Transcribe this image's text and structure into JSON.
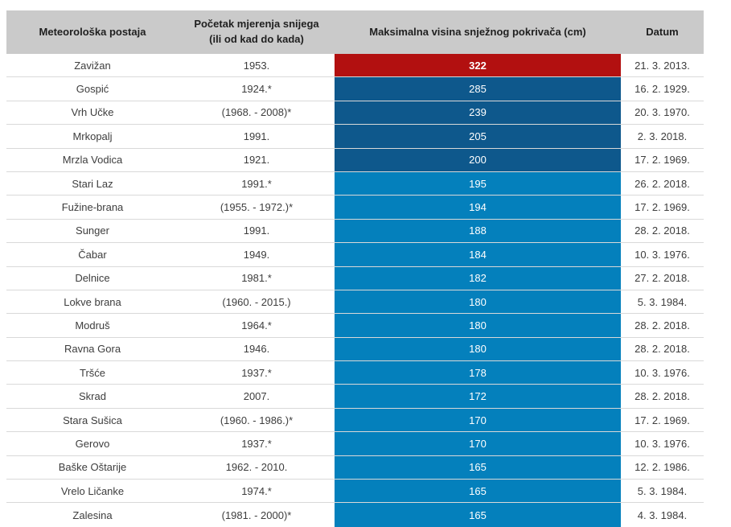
{
  "colors": {
    "header_bg": "#cacaca",
    "red": "#b21010",
    "dark_blue": "#0e588c",
    "light_blue": "#0480bc",
    "row_separator": "#d9d9d9",
    "header_text": "#1f1f1f",
    "cell_text": "#3d3d3d",
    "bar_text": "#ffffff"
  },
  "table": {
    "header": {
      "station": "Meteorološka postaja",
      "period_line1": "Početak mjerenja snijega",
      "period_line2": "(ili od kad do kada)",
      "value": "Maksimalna visina snježnog pokrivača (cm)",
      "date": "Datum"
    },
    "rows": [
      {
        "station": "Zavižan",
        "period": "1953.",
        "value": "322",
        "date": "21. 3. 2013.",
        "color": "red",
        "bold": true
      },
      {
        "station": "Gospić",
        "period": "1924.*",
        "value": "285",
        "date": "16. 2. 1929.",
        "color": "dark_blue",
        "bold": false
      },
      {
        "station": "Vrh Učke",
        "period": "(1968. - 2008)*",
        "value": "239",
        "date": "20. 3. 1970.",
        "color": "dark_blue",
        "bold": false
      },
      {
        "station": "Mrkopalj",
        "period": "1991.",
        "value": "205",
        "date": "2. 3. 2018.",
        "color": "dark_blue",
        "bold": false
      },
      {
        "station": "Mrzla Vodica",
        "period": "1921.",
        "value": "200",
        "date": "17. 2. 1969.",
        "color": "dark_blue",
        "bold": false
      },
      {
        "station": "Stari Laz",
        "period": "1991.*",
        "value": "195",
        "date": "26. 2. 2018.",
        "color": "light_blue",
        "bold": false
      },
      {
        "station": "Fužine-brana",
        "period": "(1955. - 1972.)*",
        "value": "194",
        "date": "17. 2. 1969.",
        "color": "light_blue",
        "bold": false
      },
      {
        "station": "Sunger",
        "period": "1991.",
        "value": "188",
        "date": "28. 2. 2018.",
        "color": "light_blue",
        "bold": false
      },
      {
        "station": "Čabar",
        "period": "1949.",
        "value": "184",
        "date": "10. 3. 1976.",
        "color": "light_blue",
        "bold": false
      },
      {
        "station": "Delnice",
        "period": "1981.*",
        "value": "182",
        "date": "27. 2. 2018.",
        "color": "light_blue",
        "bold": false
      },
      {
        "station": "Lokve brana",
        "period": "(1960. - 2015.)",
        "value": "180",
        "date": "5. 3. 1984.",
        "color": "light_blue",
        "bold": false
      },
      {
        "station": "Modruš",
        "period": "1964.*",
        "value": "180",
        "date": "28. 2. 2018.",
        "color": "light_blue",
        "bold": false
      },
      {
        "station": "Ravna Gora",
        "period": "1946.",
        "value": "180",
        "date": "28. 2. 2018.",
        "color": "light_blue",
        "bold": false
      },
      {
        "station": "Tršće",
        "period": "1937.*",
        "value": "178",
        "date": "10. 3. 1976.",
        "color": "light_blue",
        "bold": false
      },
      {
        "station": "Skrad",
        "period": "2007.",
        "value": "172",
        "date": "28. 2. 2018.",
        "color": "light_blue",
        "bold": false
      },
      {
        "station": "Stara Sušica",
        "period": "(1960. - 1986.)*",
        "value": "170",
        "date": "17. 2. 1969.",
        "color": "light_blue",
        "bold": false
      },
      {
        "station": "Gerovo",
        "period": "1937.*",
        "value": "170",
        "date": "10. 3. 1976.",
        "color": "light_blue",
        "bold": false
      },
      {
        "station": "Baške Oštarije",
        "period": "1962. - 2010.",
        "value": "165",
        "date": "12. 2. 1986.",
        "color": "light_blue",
        "bold": false
      },
      {
        "station": "Vrelo Ličanke",
        "period": "1974.*",
        "value": "165",
        "date": "5. 3. 1984.",
        "color": "light_blue",
        "bold": false
      },
      {
        "station": "Zalesina",
        "period": "(1981. - 2000)*",
        "value": "165",
        "date": "4. 3. 1984.",
        "color": "light_blue",
        "bold": false
      }
    ]
  },
  "chart_data": {
    "type": "table",
    "columns": [
      "Meteorološka postaja",
      "Početak mjerenja snijega (ili od kad do kada)",
      "Maksimalna visina snježnog pokrivača (cm)",
      "Datum"
    ],
    "rows": [
      [
        "Zavižan",
        "1953.",
        322,
        "21. 3. 2013."
      ],
      [
        "Gospić",
        "1924.*",
        285,
        "16. 2. 1929."
      ],
      [
        "Vrh Učke",
        "(1968. - 2008)*",
        239,
        "20. 3. 1970."
      ],
      [
        "Mrkopalj",
        "1991.",
        205,
        "2. 3. 2018."
      ],
      [
        "Mrzla Vodica",
        "1921.",
        200,
        "17. 2. 1969."
      ],
      [
        "Stari Laz",
        "1991.*",
        195,
        "26. 2. 2018."
      ],
      [
        "Fužine-brana",
        "(1955. - 1972.)*",
        194,
        "17. 2. 1969."
      ],
      [
        "Sunger",
        "1991.",
        188,
        "28. 2. 2018."
      ],
      [
        "Čabar",
        "1949.",
        184,
        "10. 3. 1976."
      ],
      [
        "Delnice",
        "1981.*",
        182,
        "27. 2. 2018."
      ],
      [
        "Lokve brana",
        "(1960. - 2015.)",
        180,
        "5. 3. 1984."
      ],
      [
        "Modruš",
        "1964.*",
        180,
        "28. 2. 2018."
      ],
      [
        "Ravna Gora",
        "1946.",
        180,
        "28. 2. 2018."
      ],
      [
        "Tršće",
        "1937.*",
        178,
        "10. 3. 1976."
      ],
      [
        "Skrad",
        "2007.",
        172,
        "28. 2. 2018."
      ],
      [
        "Stara Sušica",
        "(1960. - 1986.)*",
        170,
        "17. 2. 1969."
      ],
      [
        "Gerovo",
        "1937.*",
        170,
        "10. 3. 1976."
      ],
      [
        "Baške Oštarije",
        "1962. - 2010.",
        165,
        "12. 2. 1986."
      ],
      [
        "Vrelo Ličanke",
        "1974.*",
        165,
        "5. 3. 1984."
      ],
      [
        "Zalesina",
        "(1981. - 2000)*",
        165,
        "4. 3. 1984."
      ]
    ],
    "value_color_coding": {
      "red": "maximum value (322)",
      "dark_blue": "values >= 200",
      "light_blue": "values < 200"
    },
    "layout": "header row gray, value column rendered as full-width colored cells with white numerals"
  }
}
